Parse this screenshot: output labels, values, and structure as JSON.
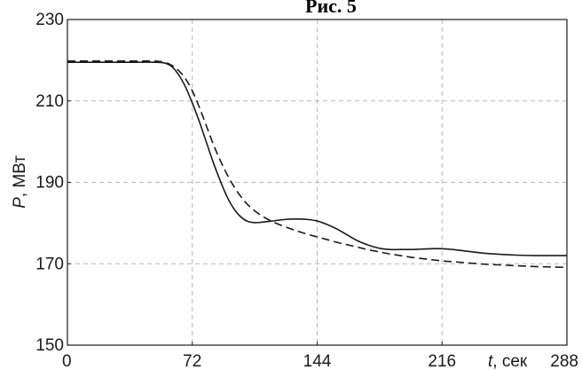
{
  "figure_title": "Рис. 5",
  "chart_data": {
    "type": "line",
    "title": "Рис. 5",
    "xlabel": {
      "var": "t",
      "unit": ", сек"
    },
    "ylabel": {
      "var": "P",
      "unit": ", МВт"
    },
    "xlim": [
      0,
      288
    ],
    "ylim": [
      150,
      230
    ],
    "xticks": [
      0,
      72,
      144,
      216,
      288
    ],
    "yticks": [
      150,
      170,
      190,
      210,
      230
    ],
    "grid": true,
    "grid_style": "dashed",
    "series": [
      {
        "style": "solid",
        "color": "#1a1a1a",
        "x": [
          0,
          20,
          40,
          50,
          56,
          60,
          64,
          68,
          72,
          76,
          80,
          84,
          88,
          92,
          96,
          100,
          104,
          108,
          112,
          116,
          120,
          126,
          132,
          138,
          144,
          150,
          156,
          162,
          168,
          174,
          180,
          186,
          192,
          198,
          204,
          210,
          216,
          222,
          228,
          234,
          240,
          250,
          260,
          270,
          280,
          288
        ],
        "y": [
          219.5,
          219.5,
          219.5,
          219.5,
          219.3,
          218.5,
          216.5,
          213.5,
          209.5,
          205.0,
          200.0,
          195.0,
          190.5,
          186.5,
          183.5,
          181.5,
          180.4,
          180.1,
          180.2,
          180.4,
          180.6,
          180.9,
          181.0,
          180.9,
          180.5,
          179.6,
          178.4,
          176.9,
          175.5,
          174.5,
          173.8,
          173.5,
          173.5,
          173.5,
          173.6,
          173.7,
          173.7,
          173.5,
          173.2,
          172.9,
          172.6,
          172.3,
          172.1,
          172.0,
          172.0,
          172.0
        ]
      },
      {
        "style": "dashed",
        "color": "#1a1a1a",
        "x": [
          0,
          20,
          40,
          50,
          56,
          60,
          64,
          68,
          72,
          76,
          80,
          84,
          88,
          92,
          96,
          100,
          104,
          108,
          112,
          116,
          120,
          126,
          132,
          138,
          144,
          150,
          156,
          162,
          168,
          174,
          180,
          186,
          192,
          198,
          204,
          210,
          216,
          222,
          228,
          234,
          240,
          250,
          260,
          270,
          280,
          288
        ],
        "y": [
          219.8,
          219.8,
          219.8,
          219.8,
          219.5,
          218.8,
          217.5,
          215.5,
          212.5,
          208.5,
          204.0,
          199.5,
          195.5,
          192.0,
          189.0,
          186.5,
          184.5,
          183.0,
          181.8,
          180.8,
          180.0,
          179.0,
          178.1,
          177.3,
          176.6,
          175.9,
          175.2,
          174.6,
          174.0,
          173.4,
          172.9,
          172.4,
          172.0,
          171.6,
          171.3,
          171.0,
          170.7,
          170.5,
          170.3,
          170.1,
          169.9,
          169.7,
          169.5,
          169.3,
          169.2,
          169.1
        ]
      }
    ]
  }
}
